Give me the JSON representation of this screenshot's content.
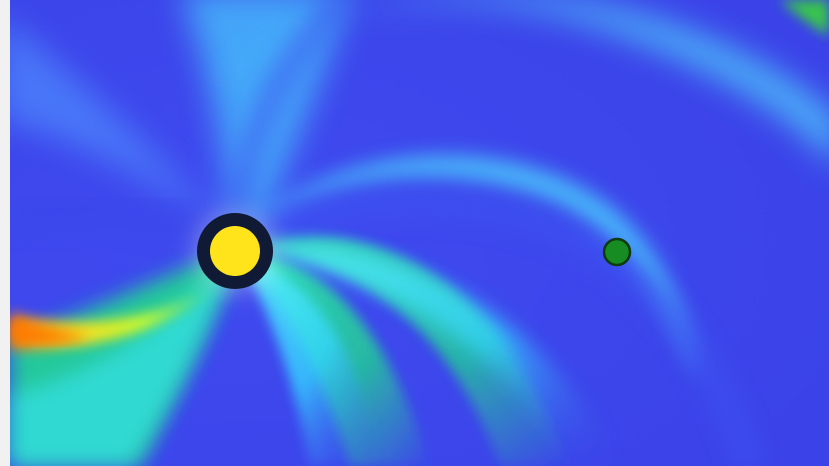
{
  "scene": {
    "palette": {
      "background": "#3b43e8",
      "arm_cyan": "#47e3ff",
      "arm_green": "#2bd39b",
      "hot_yellow": "#ffe01a",
      "orange": "#ff7a00",
      "sun_fill": "#ffe41c",
      "sun_ring": "#111a34",
      "earth_fill": "#168c22",
      "earth_outline": "#103a10"
    },
    "icons": {
      "sun": "sun-marker-icon",
      "earth": "earth-marker-icon"
    }
  }
}
